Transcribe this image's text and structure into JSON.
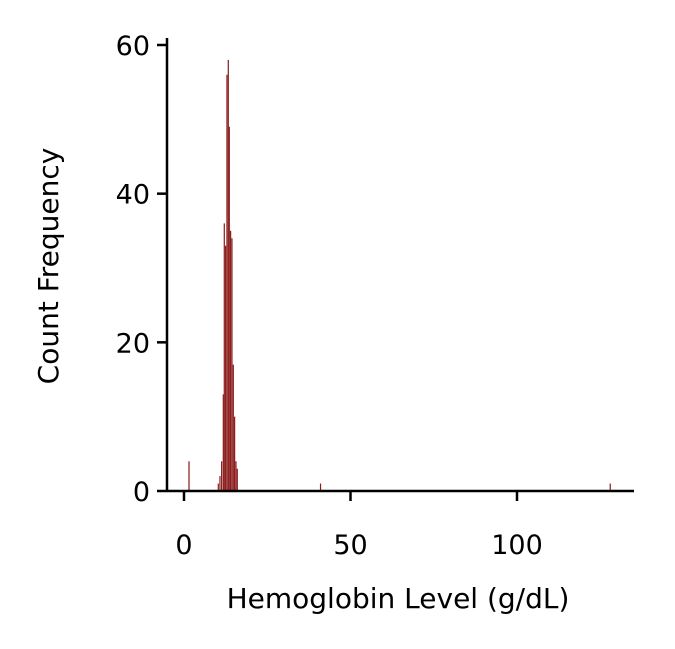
{
  "chart_data": {
    "type": "bar",
    "title": "",
    "xlabel": "Hemoglobin Level (g/dL)",
    "ylabel": "Count Frequency",
    "xlim": [
      -5,
      135
    ],
    "ylim": [
      0,
      61
    ],
    "x_ticks": [
      0,
      50,
      100
    ],
    "y_ticks": [
      0,
      20,
      40,
      60
    ],
    "bar_color": "#8b1a1a",
    "grid": false,
    "legend": "none",
    "bins": [
      {
        "x": 1.5,
        "count": 4
      },
      {
        "x": 10.3,
        "count": 1
      },
      {
        "x": 10.8,
        "count": 2
      },
      {
        "x": 11.3,
        "count": 4
      },
      {
        "x": 11.8,
        "count": 13
      },
      {
        "x": 12.1,
        "count": 36
      },
      {
        "x": 12.5,
        "count": 33
      },
      {
        "x": 12.9,
        "count": 56
      },
      {
        "x": 13.3,
        "count": 58
      },
      {
        "x": 13.6,
        "count": 49
      },
      {
        "x": 14.0,
        "count": 35
      },
      {
        "x": 14.4,
        "count": 34
      },
      {
        "x": 14.8,
        "count": 17
      },
      {
        "x": 15.2,
        "count": 10
      },
      {
        "x": 15.6,
        "count": 4
      },
      {
        "x": 16.0,
        "count": 3
      },
      {
        "x": 41.0,
        "count": 1
      },
      {
        "x": 128.0,
        "count": 1
      }
    ]
  }
}
